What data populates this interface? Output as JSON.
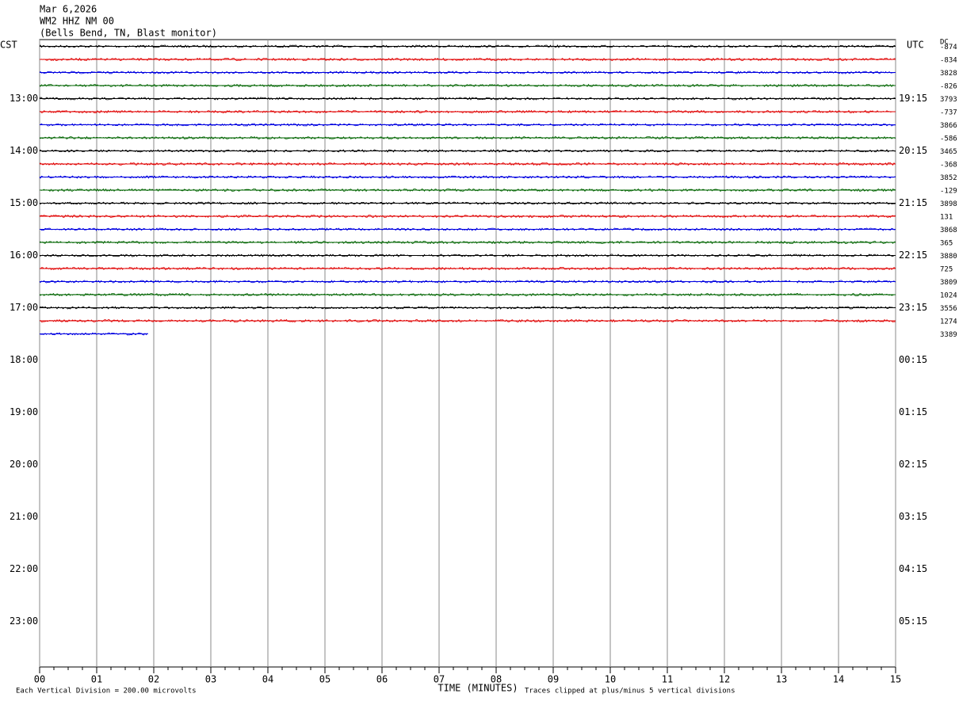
{
  "chart_data": {
    "type": "helicorder",
    "title": [
      "Mar 6,2026",
      "WM2 HHZ NM 00",
      "(Bells Bend, TN, Blast monitor)"
    ],
    "left_zone": "CST",
    "right_zone": "UTC",
    "offset_header": "DC",
    "xlabel": "TIME (MINUTES)",
    "scale_note": "Each Vertical Division =  200.00 microvolts",
    "clip_note": "Traces clipped at plus/minus 5 vertical divisions",
    "xlim": [
      0,
      15
    ],
    "xticks": [
      {
        "value": 0,
        "label": "00"
      },
      {
        "value": 1,
        "label": "01"
      },
      {
        "value": 2,
        "label": "02"
      },
      {
        "value": 3,
        "label": "03"
      },
      {
        "value": 4,
        "label": "04"
      },
      {
        "value": 5,
        "label": "05"
      },
      {
        "value": 6,
        "label": "06"
      },
      {
        "value": 7,
        "label": "07"
      },
      {
        "value": 8,
        "label": "08"
      },
      {
        "value": 9,
        "label": "09"
      },
      {
        "value": 10,
        "label": "10"
      },
      {
        "value": 11,
        "label": "11"
      },
      {
        "value": 12,
        "label": "12"
      },
      {
        "value": 13,
        "label": "13"
      },
      {
        "value": 14,
        "label": "14"
      },
      {
        "value": 15,
        "label": "15"
      }
    ],
    "cst_hours": [
      "13:00",
      "14:00",
      "15:00",
      "16:00",
      "17:00",
      "18:00",
      "19:00",
      "20:00",
      "21:00",
      "22:00",
      "23:00"
    ],
    "utc_hours": [
      "19:15",
      "20:15",
      "21:15",
      "22:15",
      "23:15",
      "00:15",
      "01:15",
      "02:15",
      "03:15",
      "04:15",
      "05:15"
    ],
    "grid": true,
    "colors": [
      "#000000",
      "#e00000",
      "#0000e0",
      "#006400"
    ],
    "traces": [
      {
        "dc": "-874",
        "end": 15
      },
      {
        "dc": "-834",
        "end": 15
      },
      {
        "dc": "3828",
        "end": 15
      },
      {
        "dc": "-826",
        "end": 15
      },
      {
        "dc": "3793",
        "end": 15
      },
      {
        "dc": "-737",
        "end": 15
      },
      {
        "dc": "3866",
        "end": 15
      },
      {
        "dc": "-586",
        "end": 15
      },
      {
        "dc": "3465",
        "end": 15
      },
      {
        "dc": "-368",
        "end": 15
      },
      {
        "dc": "3852",
        "end": 15
      },
      {
        "dc": "-129",
        "end": 15
      },
      {
        "dc": "3898",
        "end": 15
      },
      {
        "dc": "131",
        "end": 15
      },
      {
        "dc": "3868",
        "end": 15
      },
      {
        "dc": "365",
        "end": 15
      },
      {
        "dc": "3880",
        "end": 15
      },
      {
        "dc": "725",
        "end": 15
      },
      {
        "dc": "3809",
        "end": 15
      },
      {
        "dc": "1024",
        "end": 15
      },
      {
        "dc": "3556",
        "end": 15
      },
      {
        "dc": "1274",
        "end": 15
      },
      {
        "dc": "3389",
        "end": 1.9
      }
    ]
  }
}
